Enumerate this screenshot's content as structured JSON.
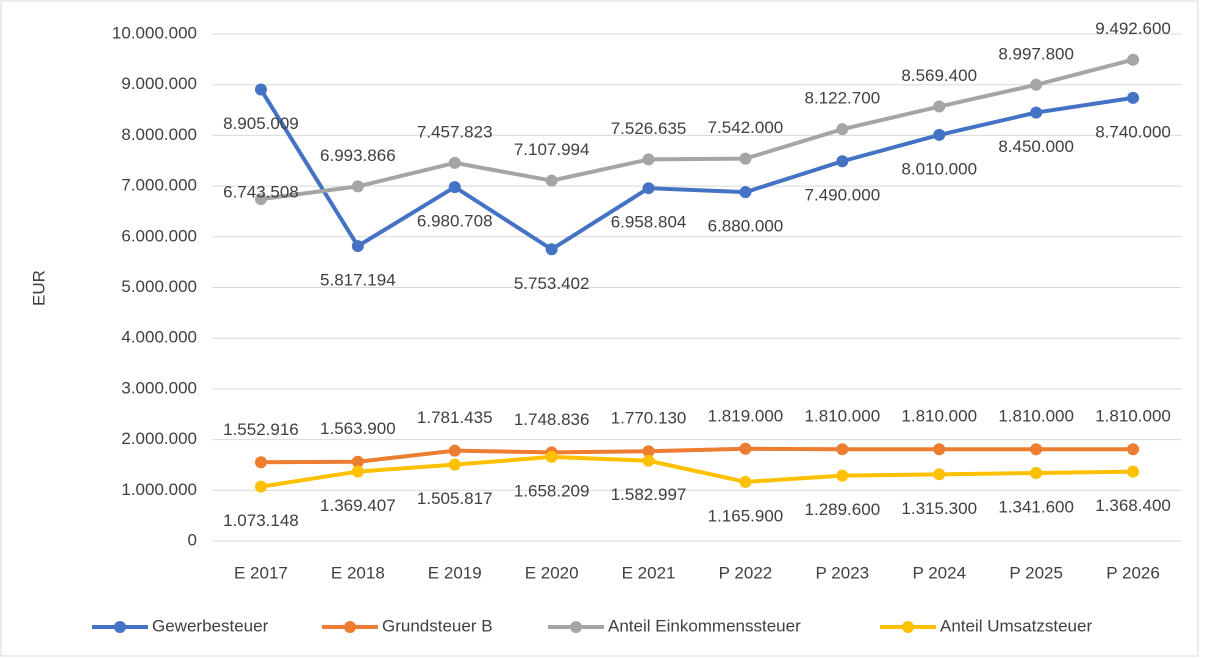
{
  "chart_data": {
    "type": "line",
    "y_label": "EUR",
    "categories": [
      "E 2017",
      "E 2018",
      "E 2019",
      "E 2020",
      "E 2021",
      "P 2022",
      "P 2023",
      "P 2024",
      "P 2025",
      "P 2026"
    ],
    "ylim": [
      0,
      10000000
    ],
    "yticks": [
      0,
      {
        "value": 1000000,
        "label": "1.000.000"
      },
      {
        "value": 2000000,
        "label": "2.000.000"
      },
      {
        "value": 3000000,
        "label": "3.000.000"
      },
      {
        "value": 4000000,
        "label": "4.000.000"
      },
      {
        "value": 5000000,
        "label": "5.000.000"
      },
      {
        "value": 6000000,
        "label": "6.000.000"
      },
      {
        "value": 7000000,
        "label": "7.000.000"
      },
      {
        "value": 8000000,
        "label": "8.000.000"
      },
      {
        "value": 9000000,
        "label": "9.000.000"
      },
      {
        "value": 10000000,
        "label": "10.000.000"
      }
    ],
    "grid": true,
    "legend": "bottom",
    "series": [
      {
        "name": "Gewerbesteuer",
        "color": "#4472c4",
        "values": [
          8905009,
          5817194,
          6980708,
          5753402,
          6958804,
          6880000,
          7490000,
          8010000,
          8450000,
          8740000
        ],
        "value_labels": [
          "8.905.009",
          "5.817.194",
          "6.980.708",
          "5.753.402",
          "6.958.804",
          "6.880.000",
          "7.490.000",
          "8.010.000",
          "8.450.000",
          "8.740.000"
        ]
      },
      {
        "name": "Grundsteuer B",
        "color": "#ed7d31",
        "values": [
          1552916,
          1563900,
          1781435,
          1748836,
          1770130,
          1819000,
          1810000,
          1810000,
          1810000,
          1810000
        ],
        "value_labels": [
          "1.552.916",
          "1.563.900",
          "1.781.435",
          "1.748.836",
          "1.770.130",
          "1.819.000",
          "1.810.000",
          "1.810.000",
          "1.810.000",
          "1.810.000"
        ]
      },
      {
        "name": "Anteil Einkommenssteuer",
        "color": "#a5a5a5",
        "values": [
          6743508,
          6993866,
          7457823,
          7107994,
          7526635,
          7542000,
          8122700,
          8569400,
          8997800,
          9492600
        ],
        "value_labels": [
          "6.743.508",
          "6.993.866",
          "7.457.823",
          "7.107.994",
          "7.526.635",
          "7.542.000",
          "8.122.700",
          "8.569.400",
          "8.997.800",
          "9.492.600"
        ]
      },
      {
        "name": "Anteil Umsatzsteuer",
        "color": "#ffc000",
        "values": [
          1073148,
          1369407,
          1505817,
          1658209,
          1582997,
          1165900,
          1289600,
          1315300,
          1341600,
          1368400
        ],
        "value_labels": [
          "1.073.148",
          "1.369.407",
          "1.505.817",
          "1.658.209",
          "1.582.997",
          "1.165.900",
          "1.289.600",
          "1.315.300",
          "1.341.600",
          "1.368.400"
        ]
      }
    ]
  }
}
